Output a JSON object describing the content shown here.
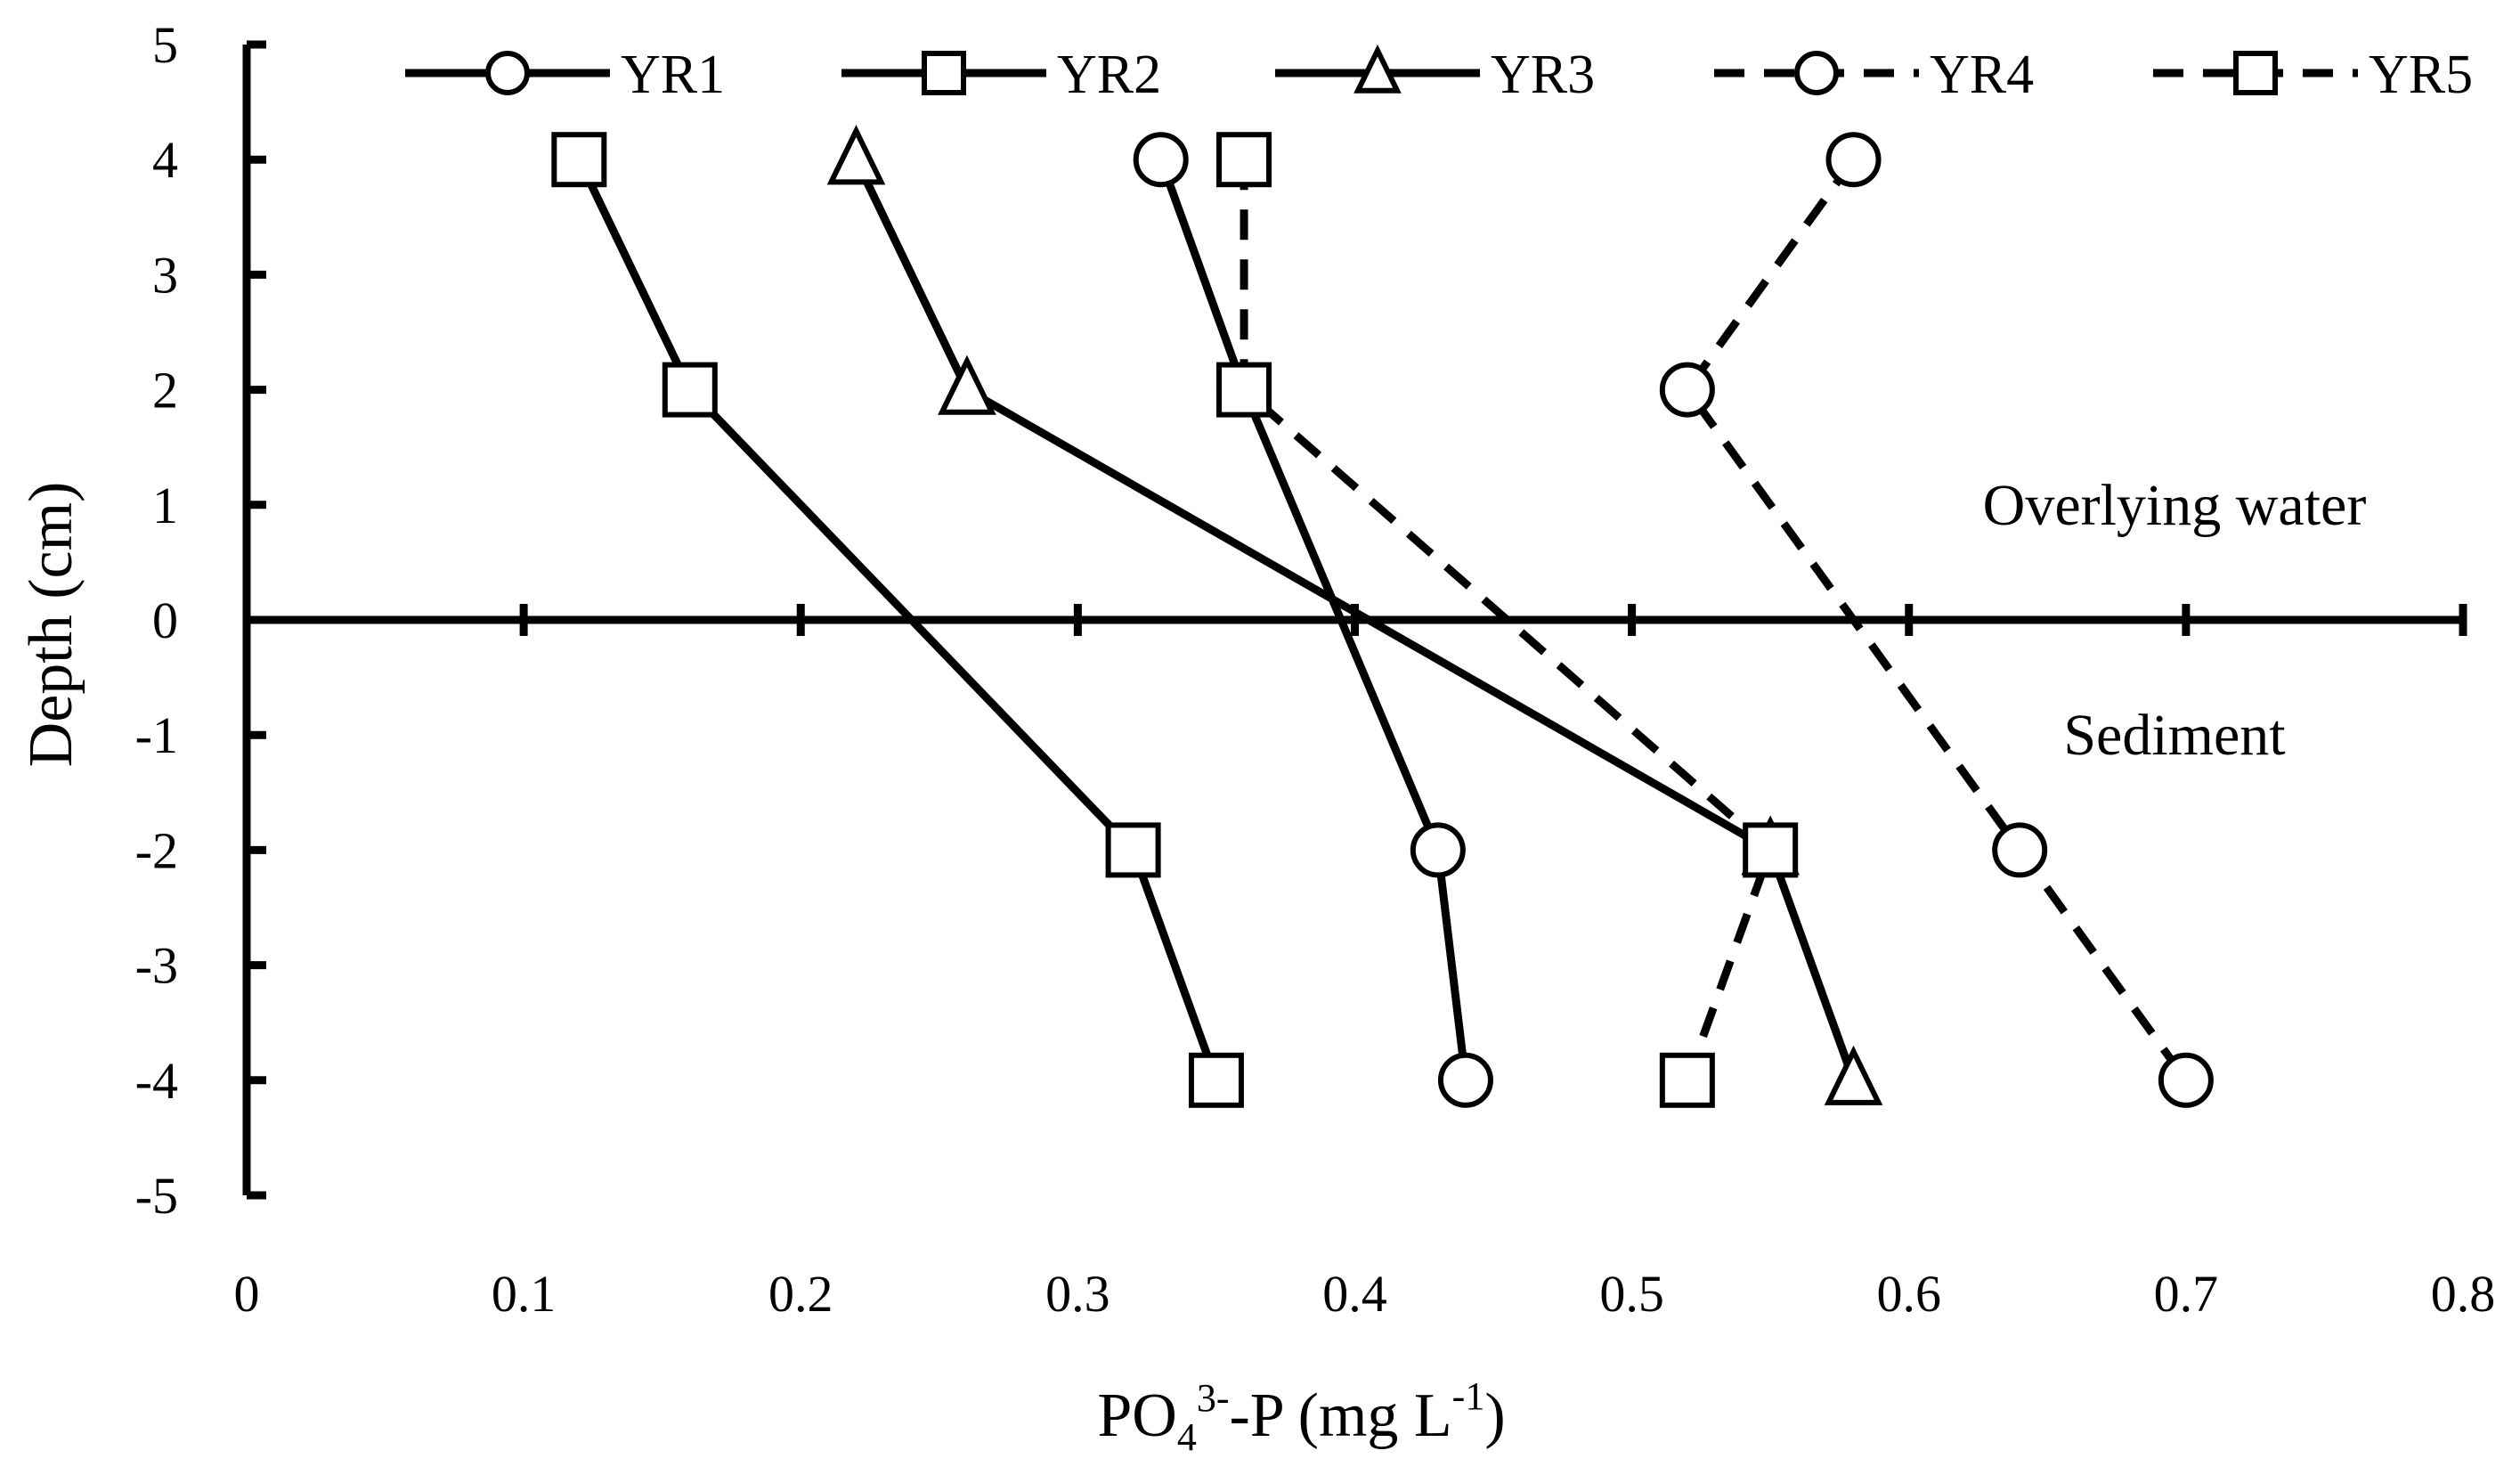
{
  "chart_data": {
    "type": "line",
    "title": "",
    "xlabel": {
      "base": "PO",
      "sub": "4",
      "sup": "3-",
      "rest": "-P (mg L",
      "unit_sup": "-1",
      "close": ")"
    },
    "ylabel": "Depth (cm)",
    "xlim": [
      0,
      0.8
    ],
    "ylim": [
      -5,
      5
    ],
    "x_ticks": [
      0,
      0.1,
      0.2,
      0.3,
      0.4,
      0.5,
      0.6,
      0.7,
      0.8
    ],
    "x_tick_labels": [
      "0",
      "0.1",
      "0.2",
      "0.3",
      "0.4",
      "0.5",
      "0.6",
      "0.7",
      "0.8"
    ],
    "y_ticks": [
      5,
      4,
      3,
      2,
      1,
      0,
      -1,
      -2,
      -3,
      -4,
      -5
    ],
    "y_tick_labels": [
      "5",
      "4",
      "3",
      "2",
      "1",
      "0",
      "-1",
      "-2",
      "-3",
      "-4",
      "-5"
    ],
    "legend_position": "top",
    "grid": false,
    "series": [
      {
        "name": "YR1",
        "marker": "circle",
        "dash": "solid",
        "x": [
          0.33,
          0.36,
          0.43,
          0.44
        ],
        "y": [
          4,
          2,
          -2,
          -4
        ]
      },
      {
        "name": "YR2",
        "marker": "square",
        "dash": "solid",
        "x": [
          0.12,
          0.16,
          0.32,
          0.35
        ],
        "y": [
          4,
          2,
          -2,
          -4
        ]
      },
      {
        "name": "YR3",
        "marker": "triangle",
        "dash": "solid",
        "x": [
          0.22,
          0.26,
          0.55,
          0.58
        ],
        "y": [
          4,
          2,
          -2,
          -4
        ]
      },
      {
        "name": "YR4",
        "marker": "circle",
        "dash": "dashed",
        "x": [
          0.58,
          0.52,
          0.64,
          0.7
        ],
        "y": [
          4,
          2,
          -2,
          -4
        ]
      },
      {
        "name": "YR5",
        "marker": "square",
        "dash": "dashed",
        "x": [
          0.36,
          0.36,
          0.55,
          0.52
        ],
        "y": [
          4,
          2,
          -2,
          -4
        ]
      }
    ],
    "annotations": [
      {
        "text": "Overlying water",
        "x": 0.68,
        "y": 1
      },
      {
        "text": "Sediment",
        "x": 0.68,
        "y": -1
      }
    ]
  },
  "colors": {
    "ink": "#000000",
    "background": "#ffffff"
  }
}
